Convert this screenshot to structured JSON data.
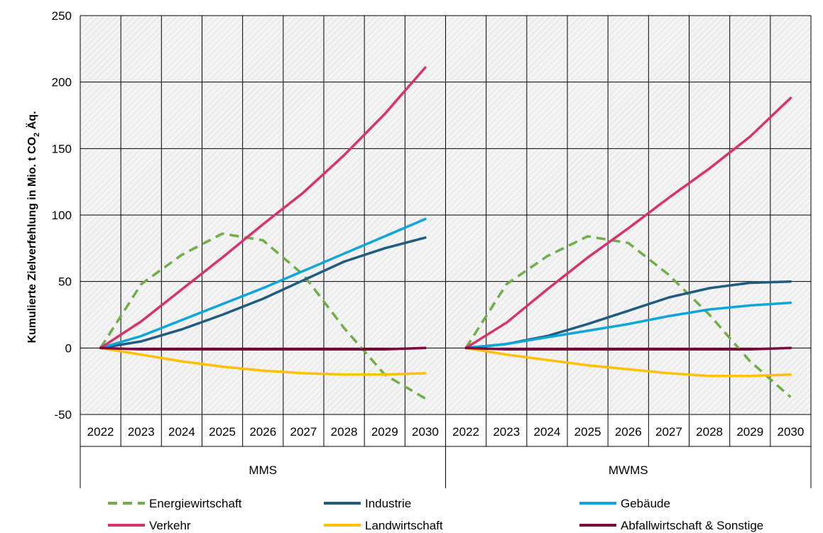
{
  "chart_data": {
    "type": "line",
    "ylabel_main": "Kumulierte Zielverfehlung in Mio. t CO",
    "ylabel_sub": "2",
    "ylabel_tail": " Äq.",
    "ylim": [
      -50,
      250
    ],
    "yticks": [
      -50,
      0,
      50,
      100,
      150,
      200,
      250
    ],
    "grid": true,
    "legend_position": "bottom",
    "x": [
      "2022",
      "2023",
      "2024",
      "2025",
      "2026",
      "2027",
      "2028",
      "2029",
      "2030"
    ],
    "groups": [
      "MMS",
      "MWMS"
    ],
    "panels": [
      {
        "group": "MMS",
        "series": [
          {
            "name": "Energiewirtschaft",
            "values": [
              0,
              48,
              70,
              86,
              81,
              55,
              15,
              -20,
              -38
            ]
          },
          {
            "name": "Industrie",
            "values": [
              0,
              5,
              14,
              25,
              37,
              51,
              65,
              75,
              83
            ]
          },
          {
            "name": "Gebäude",
            "values": [
              0,
              9,
              21,
              33,
              45,
              58,
              71,
              84,
              97
            ]
          },
          {
            "name": "Verkehr",
            "values": [
              0,
              20,
              44,
              68,
              93,
              117,
              145,
              176,
              211
            ]
          },
          {
            "name": "Landwirtschaft",
            "values": [
              0,
              -5,
              -10,
              -14,
              -17,
              -19,
              -20,
              -20,
              -19
            ]
          },
          {
            "name": "Abfallwirtschaft & Sonstige",
            "values": [
              0,
              -1,
              -1,
              -1,
              -1,
              -1,
              -1,
              -1,
              0
            ]
          }
        ]
      },
      {
        "group": "MWMS",
        "series": [
          {
            "name": "Energiewirtschaft",
            "values": [
              0,
              48,
              69,
              84,
              79,
              55,
              25,
              -10,
              -37
            ]
          },
          {
            "name": "Industrie",
            "values": [
              0,
              3,
              9,
              18,
              28,
              38,
              45,
              49,
              50
            ]
          },
          {
            "name": "Gebäude",
            "values": [
              0,
              3,
              8,
              13,
              18,
              24,
              29,
              32,
              34
            ]
          },
          {
            "name": "Verkehr",
            "values": [
              0,
              19,
              44,
              68,
              90,
              113,
              135,
              159,
              188
            ]
          },
          {
            "name": "Landwirtschaft",
            "values": [
              0,
              -5,
              -9,
              -13,
              -16,
              -19,
              -21,
              -21,
              -20
            ]
          },
          {
            "name": "Abfallwirtschaft & Sonstige",
            "values": [
              0,
              -1,
              -1,
              -1,
              -1,
              -1,
              -1,
              -1,
              0
            ]
          }
        ]
      }
    ],
    "series_styles": [
      {
        "name": "Energiewirtschaft",
        "color": "#70ad47",
        "dashed": true
      },
      {
        "name": "Industrie",
        "color": "#1f5c80",
        "dashed": false
      },
      {
        "name": "Gebäude",
        "color": "#0ea5db",
        "dashed": false
      },
      {
        "name": "Verkehr",
        "color": "#d6336c",
        "dashed": false
      },
      {
        "name": "Landwirtschaft",
        "color": "#ffc000",
        "dashed": false
      },
      {
        "name": "Abfallwirtschaft & Sonstige",
        "color": "#7b0a3e",
        "dashed": false
      }
    ]
  }
}
